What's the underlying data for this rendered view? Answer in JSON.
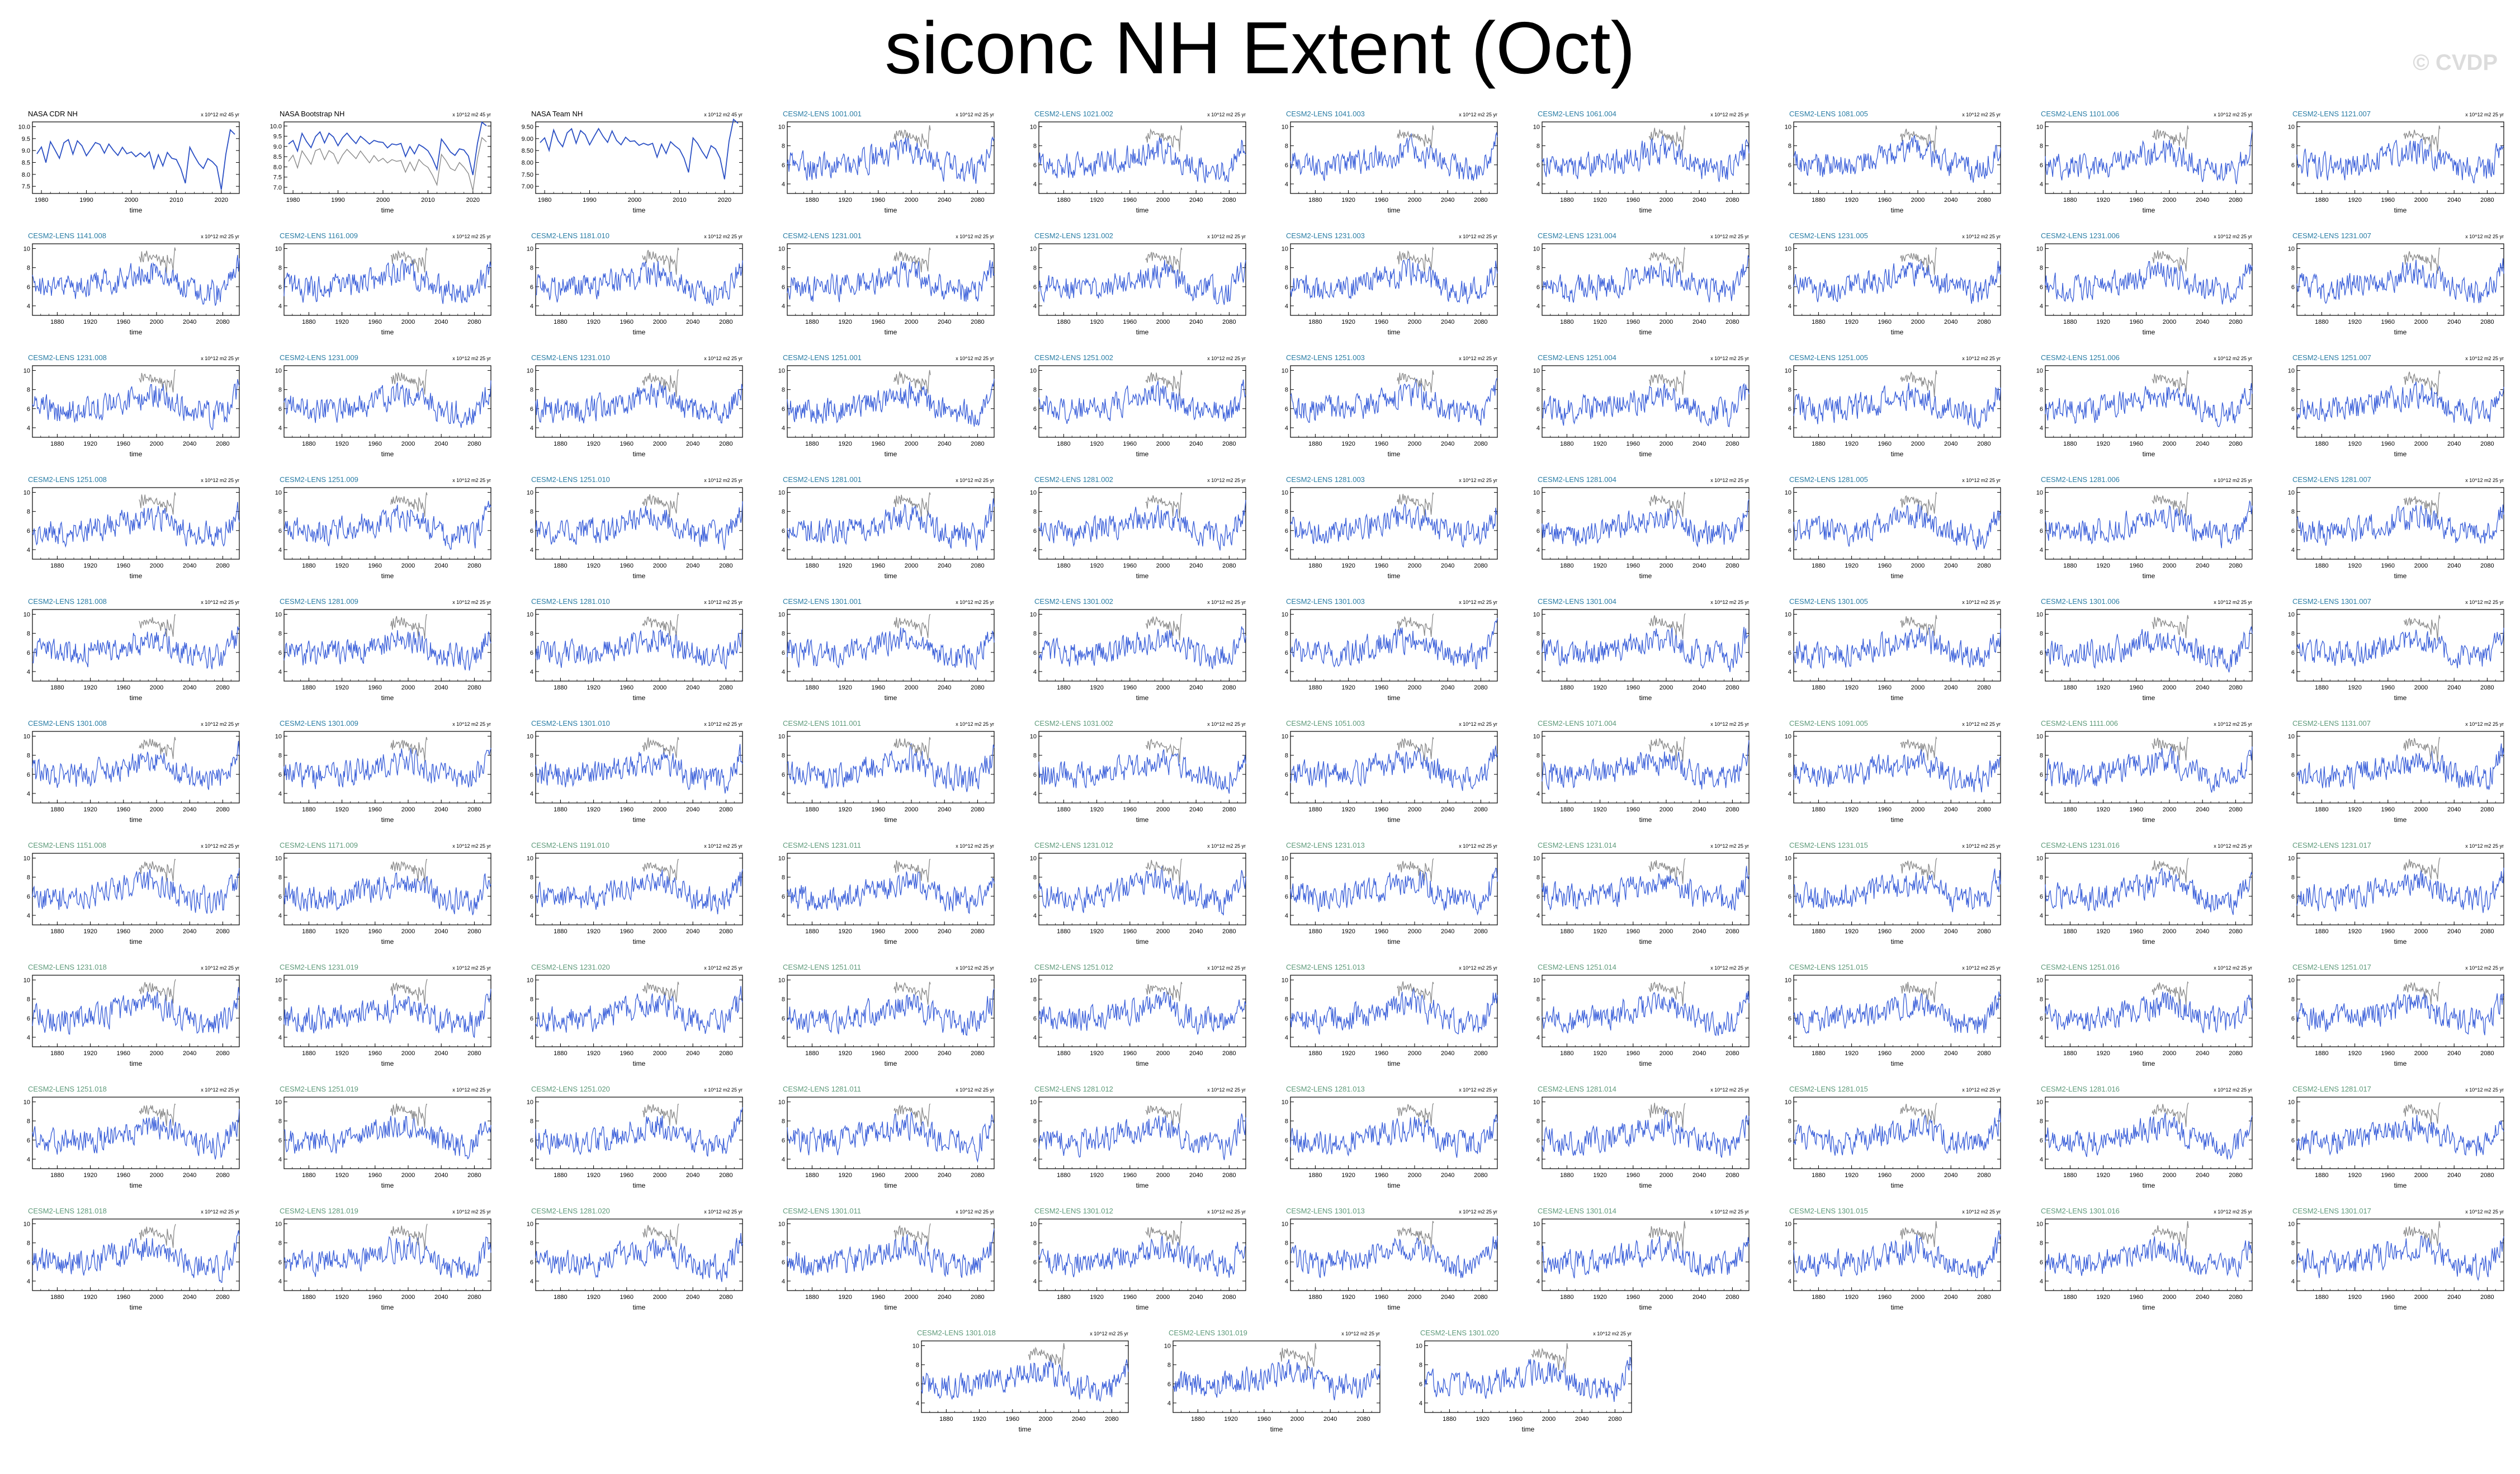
{
  "page": {
    "title": "siconc NH Extent (Oct)",
    "watermark": "© CVDP"
  },
  "colors": {
    "model": "#3a5fd9",
    "obs_overlay": "#8a8a8a",
    "obs_primary": "#2a4fc4",
    "label_obs": "#000000",
    "label_lens_a": "#2a7da5",
    "label_lens_b": "#5e9a7a",
    "axis": "#000000"
  },
  "panel_common": {
    "xlabel": "time",
    "units": "x 10^12 m2  25 yr",
    "model_xticks": [
      "1880",
      "1920",
      "1960",
      "2000",
      "2040",
      "2080"
    ],
    "model_yticks": [
      "4",
      "6",
      "8",
      "10"
    ]
  },
  "panels": [
    {
      "title": "NASA CDR NH",
      "kind": "obs",
      "units": "x 10^12 m2  45 yr",
      "xticks": [
        "1980",
        "1990",
        "2000",
        "2010",
        "2020"
      ],
      "yticks": [
        "7.5",
        "8.0",
        "8.5",
        "9.0",
        "9.5",
        "10.0"
      ]
    },
    {
      "title": "NASA Bootstrap NH",
      "kind": "obs",
      "units": "x 10^12 m2  45 yr",
      "xticks": [
        "1980",
        "1990",
        "2000",
        "2010",
        "2020"
      ],
      "yticks": [
        "7.0",
        "7.5",
        "8.0",
        "8.5",
        "9.0",
        "9.5",
        "10.0"
      ]
    },
    {
      "title": "NASA Team NH",
      "kind": "obs",
      "units": "x 10^12 m2  45 yr",
      "xticks": [
        "1980",
        "1990",
        "2000",
        "2010",
        "2020"
      ],
      "yticks": [
        "7.00",
        "7.50",
        "8.00",
        "8.50",
        "9.00",
        "9.50"
      ]
    },
    {
      "title": "CESM2-LENS 1001.001",
      "kind": "a"
    },
    {
      "title": "CESM2-LENS 1021.002",
      "kind": "a"
    },
    {
      "title": "CESM2-LENS 1041.003",
      "kind": "a"
    },
    {
      "title": "CESM2-LENS 1061.004",
      "kind": "a"
    },
    {
      "title": "CESM2-LENS 1081.005",
      "kind": "a"
    },
    {
      "title": "CESM2-LENS 1101.006",
      "kind": "a"
    },
    {
      "title": "CESM2-LENS 1121.007",
      "kind": "a"
    },
    {
      "title": "CESM2-LENS 1141.008",
      "kind": "a"
    },
    {
      "title": "CESM2-LENS 1161.009",
      "kind": "a"
    },
    {
      "title": "CESM2-LENS 1181.010",
      "kind": "a"
    },
    {
      "title": "CESM2-LENS 1231.001",
      "kind": "a"
    },
    {
      "title": "CESM2-LENS 1231.002",
      "kind": "a"
    },
    {
      "title": "CESM2-LENS 1231.003",
      "kind": "a"
    },
    {
      "title": "CESM2-LENS 1231.004",
      "kind": "a"
    },
    {
      "title": "CESM2-LENS 1231.005",
      "kind": "a"
    },
    {
      "title": "CESM2-LENS 1231.006",
      "kind": "a"
    },
    {
      "title": "CESM2-LENS 1231.007",
      "kind": "a"
    },
    {
      "title": "CESM2-LENS 1231.008",
      "kind": "a"
    },
    {
      "title": "CESM2-LENS 1231.009",
      "kind": "a"
    },
    {
      "title": "CESM2-LENS 1231.010",
      "kind": "a"
    },
    {
      "title": "CESM2-LENS 1251.001",
      "kind": "a"
    },
    {
      "title": "CESM2-LENS 1251.002",
      "kind": "a"
    },
    {
      "title": "CESM2-LENS 1251.003",
      "kind": "a"
    },
    {
      "title": "CESM2-LENS 1251.004",
      "kind": "a"
    },
    {
      "title": "CESM2-LENS 1251.005",
      "kind": "a"
    },
    {
      "title": "CESM2-LENS 1251.006",
      "kind": "a"
    },
    {
      "title": "CESM2-LENS 1251.007",
      "kind": "a"
    },
    {
      "title": "CESM2-LENS 1251.008",
      "kind": "a"
    },
    {
      "title": "CESM2-LENS 1251.009",
      "kind": "a"
    },
    {
      "title": "CESM2-LENS 1251.010",
      "kind": "a"
    },
    {
      "title": "CESM2-LENS 1281.001",
      "kind": "a"
    },
    {
      "title": "CESM2-LENS 1281.002",
      "kind": "a"
    },
    {
      "title": "CESM2-LENS 1281.003",
      "kind": "a"
    },
    {
      "title": "CESM2-LENS 1281.004",
      "kind": "a"
    },
    {
      "title": "CESM2-LENS 1281.005",
      "kind": "a"
    },
    {
      "title": "CESM2-LENS 1281.006",
      "kind": "a"
    },
    {
      "title": "CESM2-LENS 1281.007",
      "kind": "a"
    },
    {
      "title": "CESM2-LENS 1281.008",
      "kind": "a"
    },
    {
      "title": "CESM2-LENS 1281.009",
      "kind": "a"
    },
    {
      "title": "CESM2-LENS 1281.010",
      "kind": "a"
    },
    {
      "title": "CESM2-LENS 1301.001",
      "kind": "a"
    },
    {
      "title": "CESM2-LENS 1301.002",
      "kind": "a"
    },
    {
      "title": "CESM2-LENS 1301.003",
      "kind": "a"
    },
    {
      "title": "CESM2-LENS 1301.004",
      "kind": "a"
    },
    {
      "title": "CESM2-LENS 1301.005",
      "kind": "a"
    },
    {
      "title": "CESM2-LENS 1301.006",
      "kind": "a"
    },
    {
      "title": "CESM2-LENS 1301.007",
      "kind": "a"
    },
    {
      "title": "CESM2-LENS 1301.008",
      "kind": "a"
    },
    {
      "title": "CESM2-LENS 1301.009",
      "kind": "a"
    },
    {
      "title": "CESM2-LENS 1301.010",
      "kind": "a"
    },
    {
      "title": "CESM2-LENS 1011.001",
      "kind": "b"
    },
    {
      "title": "CESM2-LENS 1031.002",
      "kind": "b"
    },
    {
      "title": "CESM2-LENS 1051.003",
      "kind": "b"
    },
    {
      "title": "CESM2-LENS 1071.004",
      "kind": "b"
    },
    {
      "title": "CESM2-LENS 1091.005",
      "kind": "b"
    },
    {
      "title": "CESM2-LENS 1111.006",
      "kind": "b"
    },
    {
      "title": "CESM2-LENS 1131.007",
      "kind": "b"
    },
    {
      "title": "CESM2-LENS 1151.008",
      "kind": "b"
    },
    {
      "title": "CESM2-LENS 1171.009",
      "kind": "b"
    },
    {
      "title": "CESM2-LENS 1191.010",
      "kind": "b"
    },
    {
      "title": "CESM2-LENS 1231.011",
      "kind": "b"
    },
    {
      "title": "CESM2-LENS 1231.012",
      "kind": "b"
    },
    {
      "title": "CESM2-LENS 1231.013",
      "kind": "b"
    },
    {
      "title": "CESM2-LENS 1231.014",
      "kind": "b"
    },
    {
      "title": "CESM2-LENS 1231.015",
      "kind": "b"
    },
    {
      "title": "CESM2-LENS 1231.016",
      "kind": "b"
    },
    {
      "title": "CESM2-LENS 1231.017",
      "kind": "b"
    },
    {
      "title": "CESM2-LENS 1231.018",
      "kind": "b"
    },
    {
      "title": "CESM2-LENS 1231.019",
      "kind": "b"
    },
    {
      "title": "CESM2-LENS 1231.020",
      "kind": "b"
    },
    {
      "title": "CESM2-LENS 1251.011",
      "kind": "b"
    },
    {
      "title": "CESM2-LENS 1251.012",
      "kind": "b"
    },
    {
      "title": "CESM2-LENS 1251.013",
      "kind": "b"
    },
    {
      "title": "CESM2-LENS 1251.014",
      "kind": "b"
    },
    {
      "title": "CESM2-LENS 1251.015",
      "kind": "b"
    },
    {
      "title": "CESM2-LENS 1251.016",
      "kind": "b"
    },
    {
      "title": "CESM2-LENS 1251.017",
      "kind": "b"
    },
    {
      "title": "CESM2-LENS 1251.018",
      "kind": "b"
    },
    {
      "title": "CESM2-LENS 1251.019",
      "kind": "b"
    },
    {
      "title": "CESM2-LENS 1251.020",
      "kind": "b"
    },
    {
      "title": "CESM2-LENS 1281.011",
      "kind": "b"
    },
    {
      "title": "CESM2-LENS 1281.012",
      "kind": "b"
    },
    {
      "title": "CESM2-LENS 1281.013",
      "kind": "b"
    },
    {
      "title": "CESM2-LENS 1281.014",
      "kind": "b"
    },
    {
      "title": "CESM2-LENS 1281.015",
      "kind": "b"
    },
    {
      "title": "CESM2-LENS 1281.016",
      "kind": "b"
    },
    {
      "title": "CESM2-LENS 1281.017",
      "kind": "b"
    },
    {
      "title": "CESM2-LENS 1281.018",
      "kind": "b"
    },
    {
      "title": "CESM2-LENS 1281.019",
      "kind": "b"
    },
    {
      "title": "CESM2-LENS 1281.020",
      "kind": "b"
    },
    {
      "title": "CESM2-LENS 1301.011",
      "kind": "b"
    },
    {
      "title": "CESM2-LENS 1301.012",
      "kind": "b"
    },
    {
      "title": "CESM2-LENS 1301.013",
      "kind": "b"
    },
    {
      "title": "CESM2-LENS 1301.014",
      "kind": "b"
    },
    {
      "title": "CESM2-LENS 1301.015",
      "kind": "b"
    },
    {
      "title": "CESM2-LENS 1301.016",
      "kind": "b"
    },
    {
      "title": "CESM2-LENS 1301.017",
      "kind": "b"
    },
    {
      "title": "CESM2-LENS 1301.018",
      "kind": "b"
    },
    {
      "title": "CESM2-LENS 1301.019",
      "kind": "b"
    },
    {
      "title": "CESM2-LENS 1301.020",
      "kind": "b"
    }
  ],
  "chart_data": {
    "type": "line",
    "title": "siconc NH Extent (Oct)",
    "xlabel": "time",
    "ylabel": "",
    "panel_count": 103,
    "observations": {
      "x": [
        1979,
        1980,
        1981,
        1982,
        1983,
        1984,
        1985,
        1986,
        1987,
        1988,
        1989,
        1990,
        1991,
        1992,
        1993,
        1994,
        1995,
        1996,
        1997,
        1998,
        1999,
        2000,
        2001,
        2002,
        2003,
        2004,
        2005,
        2006,
        2007,
        2008,
        2009,
        2010,
        2011,
        2012,
        2013,
        2014,
        2015,
        2016,
        2017,
        2018,
        2019,
        2020,
        2021,
        2022,
        2023
      ],
      "series": [
        {
          "name": "NASA CDR NH",
          "values": [
            8.9,
            9.1,
            8.5,
            9.4,
            9.0,
            8.7,
            9.3,
            9.5,
            8.9,
            9.4,
            9.2,
            8.8,
            9.1,
            9.4,
            9.2,
            8.9,
            9.3,
            9.0,
            8.8,
            9.1,
            8.9,
            9.0,
            8.7,
            8.9,
            8.8,
            8.9,
            8.3,
            8.8,
            8.4,
            8.9,
            8.7,
            8.6,
            8.2,
            7.6,
            9.1,
            8.8,
            8.5,
            8.3,
            8.7,
            8.6,
            8.3,
            7.4,
            8.9,
            9.9,
            9.7
          ]
        }
      ]
    },
    "model_x_range": [
      1850,
      2100
    ],
    "model_ylim": [
      3,
      10.5
    ],
    "model_summary": {
      "x": [
        1850,
        1880,
        1920,
        1960,
        2000,
        2040,
        2080,
        2100
      ],
      "values": [
        6.2,
        5.8,
        6.0,
        6.8,
        7.6,
        5.8,
        5.4,
        8.2
      ]
    }
  }
}
